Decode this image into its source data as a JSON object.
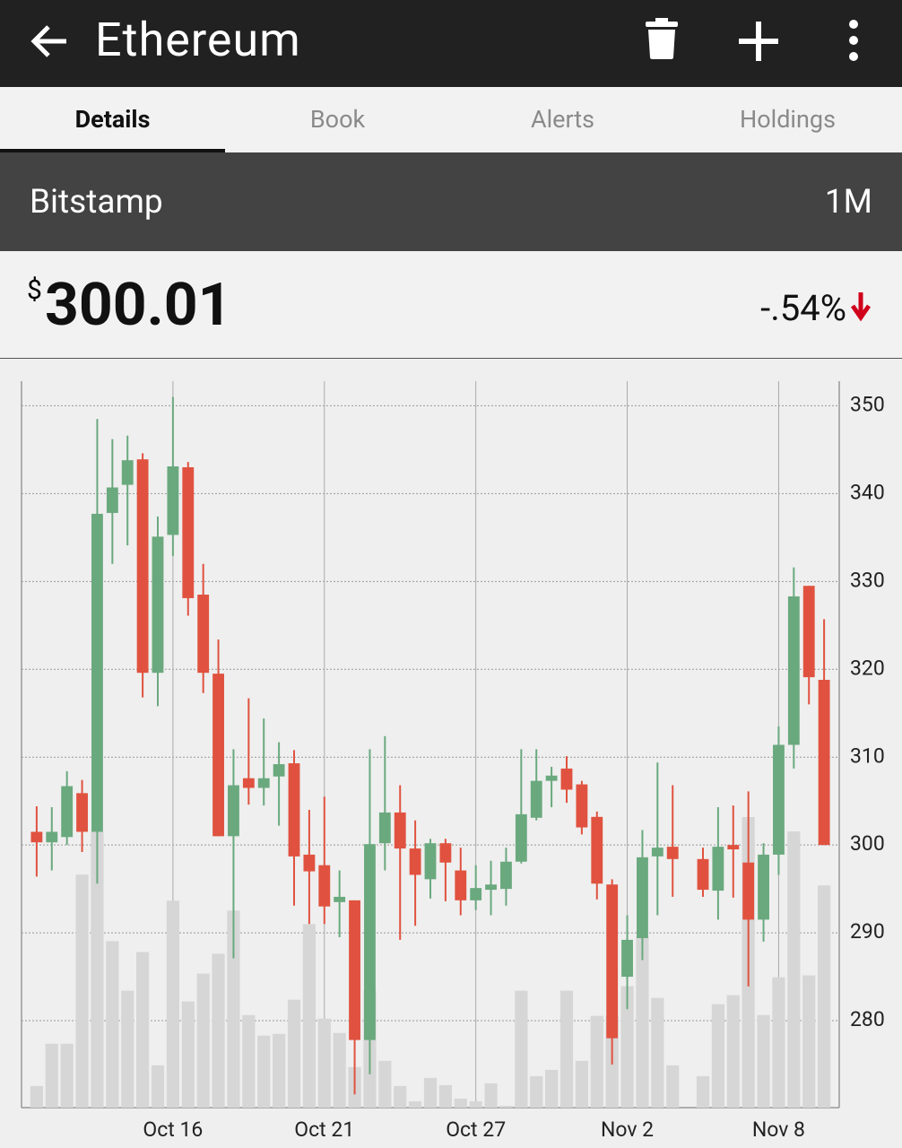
{
  "header": {
    "title": "Ethereum"
  },
  "tabs": [
    "Details",
    "Book",
    "Alerts",
    "Holdings"
  ],
  "exchange": "Bitstamp",
  "range": "1M",
  "price": {
    "symbol": "$",
    "value": "300.01",
    "change": "-.54%"
  },
  "chart_data": {
    "type": "candlestick",
    "categories": [
      null,
      null,
      null,
      null,
      null,
      null,
      null,
      null,
      null,
      "Oct 16",
      null,
      null,
      null,
      null,
      null,
      null,
      null,
      null,
      null,
      "Oct 21",
      null,
      null,
      null,
      null,
      null,
      null,
      null,
      null,
      null,
      "Oct 27",
      null,
      null,
      null,
      null,
      null,
      null,
      null,
      null,
      null,
      "Nov 2",
      null,
      null,
      null,
      null,
      null,
      null,
      null,
      null,
      null,
      "Nov 8",
      null,
      null,
      null
    ],
    "open": [
      301.5,
      300.3,
      300.9,
      305.9,
      301.5,
      337.8,
      341.0,
      343.9,
      319.6,
      335.3,
      343.0,
      328.5,
      319.5,
      301.0,
      307.6,
      306.5,
      307.8,
      309.3,
      298.9,
      297.7,
      293.5,
      293.7,
      277.8,
      300.2,
      303.7,
      299.6,
      296.1,
      300.2,
      297.1,
      293.7,
      294.9,
      295.0,
      298.1,
      303.1,
      307.3,
      308.7,
      306.9,
      303.2,
      295.5,
      285.0,
      289.4,
      298.7,
      299.8,
      null,
      298.4,
      294.8,
      300.0,
      298.0,
      291.5,
      298.9,
      311.4,
      329.5,
      318.8
    ],
    "high": [
      304.4,
      304.3,
      308.4,
      307.4,
      348.5,
      346.2,
      346.6,
      344.6,
      337.4,
      351.0,
      343.6,
      332.0,
      323.4,
      310.9,
      316.7,
      314.4,
      311.7,
      310.8,
      304.0,
      305.5,
      297.1,
      293.7,
      310.9,
      312.4,
      306.8,
      302.8,
      300.7,
      300.7,
      299.7,
      297.7,
      298.2,
      299.7,
      310.9,
      310.9,
      308.9,
      310.1,
      307.3,
      303.8,
      296.1,
      292.0,
      301.7,
      309.4,
      306.8,
      null,
      299.7,
      304.3,
      304.5,
      306.1,
      300.2,
      313.5,
      331.6,
      329.5,
      325.7
    ],
    "low": [
      296.4,
      297.1,
      300.0,
      299.2,
      295.6,
      332.0,
      334.1,
      316.8,
      315.8,
      332.9,
      326.1,
      317.3,
      301.0,
      287.1,
      304.6,
      304.5,
      302.2,
      293.1,
      291.0,
      291.0,
      289.5,
      271.6,
      273.9,
      297.1,
      289.2,
      290.8,
      293.9,
      293.6,
      292.0,
      292.6,
      292.0,
      293.1,
      297.9,
      302.8,
      304.3,
      304.8,
      301.2,
      293.8,
      275.0,
      281.3,
      286.9,
      292.0,
      294.1,
      null,
      294.1,
      291.5,
      294.0,
      283.9,
      289.0,
      296.6,
      308.7,
      316.0,
      300.0
    ],
    "close": [
      300.3,
      301.5,
      306.7,
      301.5,
      337.7,
      340.7,
      343.8,
      319.6,
      335.1,
      343.1,
      328.1,
      319.6,
      301.0,
      306.8,
      306.5,
      307.6,
      309.2,
      298.7,
      297.0,
      293.0,
      294.1,
      277.8,
      300.1,
      303.7,
      299.6,
      296.6,
      300.2,
      298.0,
      293.7,
      295.1,
      295.5,
      298.1,
      303.5,
      307.3,
      307.9,
      306.3,
      302.0,
      295.6,
      278.0,
      289.2,
      298.6,
      299.7,
      298.4,
      null,
      294.9,
      299.8,
      299.5,
      291.5,
      298.9,
      311.4,
      328.3,
      319.1,
      300.0
    ],
    "volume": [
      24,
      71,
      71,
      259,
      307,
      185,
      130,
      173,
      47,
      230,
      118,
      149,
      171,
      219,
      103,
      80,
      82,
      120,
      204,
      99,
      83,
      45,
      130,
      52,
      24,
      7,
      33,
      25,
      10,
      7,
      27,
      2,
      130,
      35,
      42,
      130,
      52,
      102,
      102,
      135,
      190,
      122,
      47,
      null,
      35,
      115,
      125,
      323,
      103,
      145,
      307,
      147,
      247
    ],
    "up_color": "#6aa97e",
    "down_color": "#e0523f",
    "volume_color": "#d6d6d6",
    "ylim": [
      270.1,
      352.8
    ],
    "yticks": [
      280,
      290,
      300,
      310,
      320,
      330,
      340,
      350
    ],
    "grid": true
  }
}
